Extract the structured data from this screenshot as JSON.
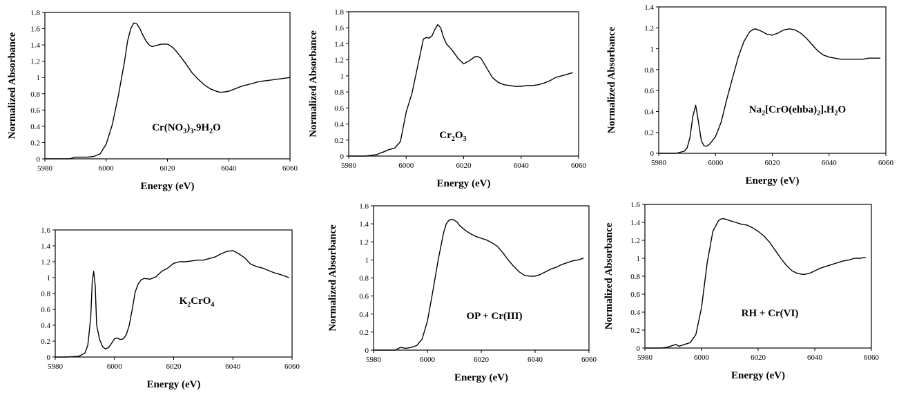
{
  "chart_data": [
    {
      "type": "line",
      "label_parts": [
        [
          "Cr(NO",
          false
        ],
        [
          "3",
          true
        ],
        [
          ")",
          false
        ],
        [
          "3",
          true
        ],
        [
          ".9H",
          false
        ],
        [
          "2",
          true
        ],
        [
          "O",
          false
        ]
      ],
      "xlabel": "Energy (eV)",
      "ylabel": "Normalized   Absorbance",
      "xlim": [
        5980,
        6060
      ],
      "ylim": [
        0,
        1.8
      ],
      "xticks": [
        5980,
        6000,
        6020,
        6040,
        6060
      ],
      "yticks": [
        0,
        0.2,
        0.4,
        0.6,
        0.8,
        1,
        1.2,
        1.4,
        1.6,
        1.8
      ],
      "series": [
        {
          "x": [
            5980,
            5988,
            5990,
            5992,
            5994,
            5996,
            5998,
            6000,
            6002,
            6004,
            6006,
            6007,
            6008,
            6009,
            6010,
            6011,
            6012,
            6013,
            6014,
            6015,
            6016,
            6017,
            6018,
            6019,
            6020,
            6021,
            6022,
            6024,
            6026,
            6028,
            6030,
            6032,
            6034,
            6036,
            6037,
            6038,
            6040,
            6042,
            6044,
            6046,
            6048,
            6050,
            6052,
            6054,
            6056,
            6058,
            6060
          ],
          "y": [
            0,
            0,
            0.02,
            0.02,
            0.02,
            0.03,
            0.06,
            0.18,
            0.42,
            0.78,
            1.2,
            1.45,
            1.6,
            1.67,
            1.66,
            1.6,
            1.52,
            1.45,
            1.4,
            1.38,
            1.39,
            1.4,
            1.41,
            1.41,
            1.41,
            1.39,
            1.36,
            1.27,
            1.17,
            1.06,
            0.98,
            0.91,
            0.86,
            0.83,
            0.82,
            0.82,
            0.83,
            0.86,
            0.89,
            0.91,
            0.93,
            0.95,
            0.96,
            0.97,
            0.98,
            0.99,
            1.0
          ]
        }
      ]
    },
    {
      "type": "line",
      "label_parts": [
        [
          "Cr",
          false
        ],
        [
          "2",
          true
        ],
        [
          "O",
          false
        ],
        [
          "3",
          true
        ]
      ],
      "xlabel": "Energy (eV)",
      "ylabel": "Normalized   Absorbance",
      "xlim": [
        5980,
        6060
      ],
      "ylim": [
        0,
        1.8
      ],
      "xticks": [
        5980,
        6000,
        6020,
        6040,
        6060
      ],
      "yticks": [
        0,
        0.2,
        0.4,
        0.6,
        0.8,
        1,
        1.2,
        1.4,
        1.6,
        1.8
      ],
      "series": [
        {
          "x": [
            5980,
            5986,
            5988,
            5990,
            5991,
            5992,
            5994,
            5996,
            5998,
            6000,
            6002,
            6004,
            6006,
            6007,
            6008,
            6009,
            6010,
            6011,
            6012,
            6013,
            6014,
            6016,
            6018,
            6020,
            6022,
            6024,
            6025,
            6026,
            6028,
            6030,
            6032,
            6034,
            6036,
            6038,
            6040,
            6042,
            6044,
            6046,
            6048,
            6050,
            6052,
            6054,
            6056,
            6058
          ],
          "y": [
            0,
            0,
            0.01,
            0.02,
            0.04,
            0.05,
            0.08,
            0.1,
            0.18,
            0.55,
            0.78,
            1.12,
            1.46,
            1.48,
            1.47,
            1.5,
            1.58,
            1.64,
            1.6,
            1.48,
            1.4,
            1.32,
            1.22,
            1.15,
            1.19,
            1.24,
            1.24,
            1.22,
            1.1,
            0.98,
            0.92,
            0.89,
            0.88,
            0.87,
            0.87,
            0.88,
            0.88,
            0.89,
            0.91,
            0.94,
            0.98,
            1.0,
            1.02,
            1.04
          ]
        }
      ]
    },
    {
      "type": "line",
      "label_parts": [
        [
          "Na",
          false
        ],
        [
          "2",
          true
        ],
        [
          "[CrO(ehba)",
          false
        ],
        [
          "2",
          true
        ],
        [
          "].H",
          false
        ],
        [
          "2",
          true
        ],
        [
          "O",
          false
        ]
      ],
      "xlabel": "Energy (eV)",
      "ylabel": "Normalized   Absorbance",
      "xlim": [
        5980,
        6060
      ],
      "ylim": [
        0,
        1.4
      ],
      "xticks": [
        5980,
        6000,
        6020,
        6040,
        6060
      ],
      "yticks": [
        0,
        0.2,
        0.4,
        0.6,
        0.8,
        1,
        1.2,
        1.4
      ],
      "series": [
        {
          "x": [
            5980,
            5986,
            5989,
            5990,
            5991,
            5992,
            5993,
            5994,
            5995,
            5996,
            5997,
            5998,
            6000,
            6002,
            6004,
            6006,
            6008,
            6010,
            6012,
            6013,
            6014,
            6015,
            6016,
            6018,
            6020,
            6022,
            6024,
            6026,
            6028,
            6030,
            6032,
            6034,
            6036,
            6038,
            6040,
            6042,
            6044,
            6046,
            6048,
            6050,
            6052,
            6054,
            6056,
            6058
          ],
          "y": [
            0,
            0,
            0.02,
            0.05,
            0.15,
            0.35,
            0.46,
            0.3,
            0.12,
            0.07,
            0.07,
            0.09,
            0.16,
            0.3,
            0.52,
            0.72,
            0.92,
            1.07,
            1.16,
            1.18,
            1.19,
            1.18,
            1.17,
            1.14,
            1.13,
            1.15,
            1.18,
            1.19,
            1.18,
            1.15,
            1.1,
            1.04,
            0.98,
            0.94,
            0.92,
            0.91,
            0.9,
            0.9,
            0.9,
            0.9,
            0.9,
            0.91,
            0.91,
            0.91
          ]
        }
      ]
    },
    {
      "type": "line",
      "label_parts": [
        [
          "K",
          false
        ],
        [
          "2",
          true
        ],
        [
          "CrO",
          false
        ],
        [
          "4",
          true
        ]
      ],
      "xlabel": "Energy (eV)",
      "ylabel": "",
      "xlim": [
        5980,
        6060
      ],
      "ylim": [
        0,
        1.6
      ],
      "xticks": [
        5980,
        6000,
        6020,
        6040,
        6060
      ],
      "yticks": [
        0,
        0.2,
        0.4,
        0.6,
        0.8,
        1,
        1.2,
        1.4,
        1.6
      ],
      "series": [
        {
          "x": [
            5980,
            5984,
            5988,
            5990,
            5991,
            5992,
            5992.5,
            5993,
            5993.5,
            5994,
            5995,
            5996,
            5997,
            5998,
            5999,
            6000,
            6001,
            6002,
            6003,
            6004,
            6005,
            6006,
            6007,
            6008,
            6009,
            6010,
            6012,
            6014,
            6016,
            6018,
            6020,
            6022,
            6024,
            6026,
            6028,
            6030,
            6032,
            6034,
            6036,
            6038,
            6040,
            6042,
            6044,
            6046,
            6048,
            6050,
            6052,
            6054,
            6056,
            6059
          ],
          "y": [
            0,
            0,
            0.01,
            0.05,
            0.15,
            0.5,
            0.95,
            1.08,
            0.9,
            0.4,
            0.22,
            0.13,
            0.1,
            0.12,
            0.17,
            0.23,
            0.24,
            0.22,
            0.23,
            0.28,
            0.4,
            0.6,
            0.82,
            0.92,
            0.97,
            0.99,
            0.98,
            1.01,
            1.08,
            1.12,
            1.18,
            1.2,
            1.2,
            1.21,
            1.22,
            1.22,
            1.24,
            1.26,
            1.3,
            1.33,
            1.34,
            1.3,
            1.25,
            1.17,
            1.14,
            1.12,
            1.09,
            1.06,
            1.04,
            1.0
          ]
        }
      ]
    },
    {
      "type": "line",
      "label_parts": [
        [
          "OP + Cr(III)",
          false
        ]
      ],
      "xlabel": "Energy (eV)",
      "ylabel": "Normalized   Absorbance",
      "xlim": [
        5980,
        6060
      ],
      "ylim": [
        0,
        1.6
      ],
      "xticks": [
        5980,
        6000,
        6020,
        6040,
        6060
      ],
      "yticks": [
        0,
        0.2,
        0.4,
        0.6,
        0.8,
        1,
        1.2,
        1.4,
        1.6
      ],
      "series": [
        {
          "x": [
            5980,
            5988,
            5990,
            5992,
            5994,
            5996,
            5998,
            6000,
            6002,
            6004,
            6006,
            6007,
            6008,
            6009,
            6010,
            6011,
            6012,
            6014,
            6016,
            6018,
            6020,
            6022,
            6024,
            6026,
            6028,
            6030,
            6032,
            6034,
            6036,
            6038,
            6040,
            6042,
            6044,
            6046,
            6048,
            6050,
            6052,
            6054,
            6056,
            6058
          ],
          "y": [
            0,
            0,
            0.03,
            0.02,
            0.03,
            0.05,
            0.12,
            0.32,
            0.65,
            1.0,
            1.3,
            1.4,
            1.44,
            1.45,
            1.44,
            1.42,
            1.38,
            1.33,
            1.29,
            1.26,
            1.24,
            1.22,
            1.19,
            1.15,
            1.08,
            1.0,
            0.93,
            0.87,
            0.83,
            0.82,
            0.82,
            0.84,
            0.87,
            0.9,
            0.92,
            0.95,
            0.97,
            0.99,
            1.0,
            1.02
          ]
        }
      ]
    },
    {
      "type": "line",
      "label_parts": [
        [
          "RH + Cr(VI)",
          false
        ]
      ],
      "xlabel": "Energy (eV)",
      "ylabel": "Normalized   Absorbance",
      "xlim": [
        5980,
        6060
      ],
      "ylim": [
        0,
        1.6
      ],
      "xticks": [
        5980,
        6000,
        6020,
        6040,
        6060
      ],
      "yticks": [
        0,
        0.2,
        0.4,
        0.6,
        0.8,
        1,
        1.2,
        1.4,
        1.6
      ],
      "series": [
        {
          "x": [
            5980,
            5986,
            5988,
            5990,
            5991,
            5992,
            5994,
            5996,
            5998,
            6000,
            6002,
            6004,
            6006,
            6007,
            6008,
            6009,
            6010,
            6012,
            6014,
            6016,
            6018,
            6020,
            6022,
            6024,
            6026,
            6028,
            6030,
            6032,
            6034,
            6036,
            6038,
            6040,
            6042,
            6044,
            6046,
            6048,
            6050,
            6052,
            6054,
            6056,
            6058
          ],
          "y": [
            0,
            0,
            0.01,
            0.03,
            0.04,
            0.02,
            0.04,
            0.06,
            0.15,
            0.45,
            0.95,
            1.3,
            1.42,
            1.44,
            1.44,
            1.43,
            1.42,
            1.4,
            1.38,
            1.37,
            1.34,
            1.3,
            1.25,
            1.18,
            1.09,
            1.0,
            0.92,
            0.86,
            0.83,
            0.82,
            0.83,
            0.86,
            0.89,
            0.91,
            0.93,
            0.95,
            0.97,
            0.98,
            1.0,
            1.0,
            1.01
          ]
        }
      ]
    }
  ]
}
